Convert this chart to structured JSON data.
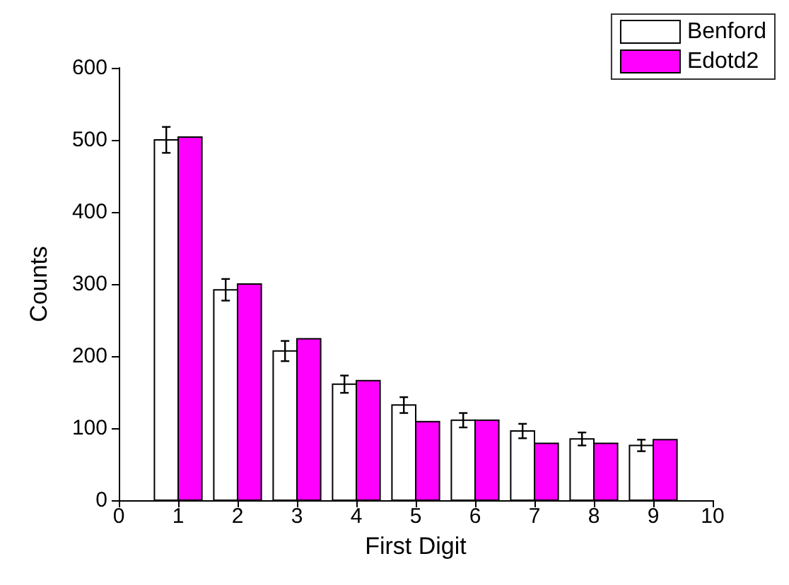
{
  "chart_data": {
    "type": "bar",
    "xlabel": "First Digit",
    "ylabel": "Counts",
    "x": [
      1,
      2,
      3,
      4,
      5,
      6,
      7,
      8,
      9
    ],
    "series": [
      {
        "name": "Benford",
        "color": "#ffffff",
        "values": [
          500,
          292,
          207,
          161,
          132,
          111,
          96,
          85,
          76
        ],
        "errors": [
          18,
          15,
          14,
          12,
          11,
          10,
          10,
          9,
          8
        ]
      },
      {
        "name": "Edotd2",
        "color": "#ff00ff",
        "values": [
          504,
          300,
          224,
          166,
          109,
          111,
          79,
          79,
          84
        ]
      }
    ],
    "xlim": [
      0,
      10
    ],
    "xticks": [
      0,
      1,
      2,
      3,
      4,
      5,
      6,
      7,
      8,
      9,
      10
    ],
    "ylim": [
      0,
      600
    ],
    "yticks": [
      0,
      100,
      200,
      300,
      400,
      500,
      600
    ],
    "legend": "top right",
    "grid": false
  }
}
